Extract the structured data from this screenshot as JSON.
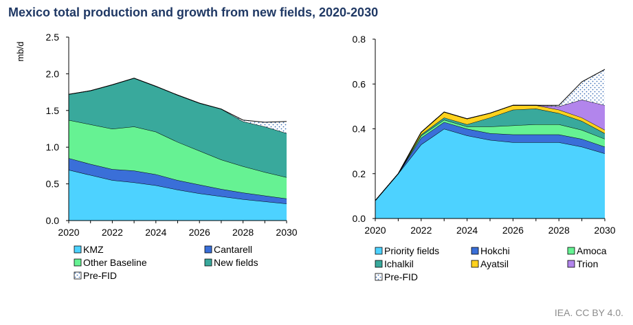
{
  "title": "Mexico total production and growth from new fields, 2020-2030",
  "credit": "IEA. CC BY 4.0.",
  "colors": {
    "kmz": "#4dd2ff",
    "cantarell": "#3a6fd8",
    "other_baseline": "#66f293",
    "new_fields": "#39a99c",
    "pre_fid": "#ffffff",
    "priority_fields": "#4dd2ff",
    "hokchi": "#3a6fd8",
    "amoca": "#66f293",
    "ichalkil": "#39a99c",
    "ayatsil": "#ffd21e",
    "trion": "#b285ec"
  },
  "chart_data": [
    {
      "type": "area",
      "stacked": true,
      "ylabel": "mb/d",
      "xlabel": "",
      "ylim": [
        0,
        2.5
      ],
      "yticks": [
        "0.0",
        "0.5",
        "1.0",
        "1.5",
        "2.0",
        "2.5"
      ],
      "xticks": [
        "2020",
        "2022",
        "2024",
        "2026",
        "2028",
        "2030"
      ],
      "x": [
        2020,
        2021,
        2022,
        2023,
        2024,
        2025,
        2026,
        2027,
        2028,
        2029,
        2030
      ],
      "series": [
        {
          "name": "KMZ",
          "color_key": "kmz",
          "values": [
            0.69,
            0.62,
            0.55,
            0.52,
            0.48,
            0.42,
            0.37,
            0.33,
            0.29,
            0.26,
            0.23
          ]
        },
        {
          "name": "Cantarell",
          "color_key": "cantarell",
          "values": [
            0.16,
            0.15,
            0.15,
            0.16,
            0.15,
            0.13,
            0.12,
            0.1,
            0.09,
            0.08,
            0.07
          ]
        },
        {
          "name": "Other Baseline",
          "color_key": "other_baseline",
          "values": [
            0.52,
            0.54,
            0.55,
            0.6,
            0.58,
            0.52,
            0.46,
            0.4,
            0.36,
            0.32,
            0.29
          ]
        },
        {
          "name": "New fields",
          "color_key": "new_fields",
          "values": [
            0.35,
            0.46,
            0.6,
            0.66,
            0.62,
            0.64,
            0.65,
            0.69,
            0.61,
            0.62,
            0.6
          ]
        },
        {
          "name": "Pre-FID",
          "color_key": "pre_fid",
          "dotted": true,
          "values": [
            0,
            0,
            0,
            0,
            0,
            0,
            0,
            0,
            0.02,
            0.06,
            0.16
          ]
        }
      ],
      "legend": [
        {
          "label": "KMZ",
          "color_key": "kmz"
        },
        {
          "label": "Cantarell",
          "color_key": "cantarell"
        },
        {
          "label": "Other Baseline",
          "color_key": "other_baseline"
        },
        {
          "label": "New fields",
          "color_key": "new_fields"
        },
        {
          "label": "Pre-FID",
          "color_key": "pre_fid",
          "dotted": true
        }
      ]
    },
    {
      "type": "area",
      "stacked": true,
      "ylabel": "",
      "xlabel": "",
      "ylim": [
        0,
        0.8
      ],
      "yticks": [
        "0.0",
        "0.2",
        "0.4",
        "0.6",
        "0.8"
      ],
      "xticks": [
        "2020",
        "2022",
        "2024",
        "2026",
        "2028",
        "2030"
      ],
      "x": [
        2020,
        2021,
        2022,
        2023,
        2024,
        2025,
        2026,
        2027,
        2028,
        2029,
        2030
      ],
      "series": [
        {
          "name": "Priority fields",
          "color_key": "priority_fields",
          "values": [
            0.08,
            0.2,
            0.33,
            0.4,
            0.37,
            0.35,
            0.34,
            0.34,
            0.34,
            0.32,
            0.29
          ]
        },
        {
          "name": "Hokchi",
          "color_key": "hokchi",
          "values": [
            0,
            0,
            0.03,
            0.03,
            0.03,
            0.03,
            0.035,
            0.035,
            0.035,
            0.035,
            0.03
          ]
        },
        {
          "name": "Amoca",
          "color_key": "amoca",
          "values": [
            0,
            0,
            0.01,
            0.01,
            0.01,
            0.03,
            0.04,
            0.045,
            0.045,
            0.04,
            0.035
          ]
        },
        {
          "name": "Ichalkil",
          "color_key": "ichalkil",
          "values": [
            0,
            0,
            0.005,
            0.01,
            0.01,
            0.04,
            0.07,
            0.07,
            0.05,
            0.04,
            0.025
          ]
        },
        {
          "name": "Ayatsil",
          "color_key": "ayatsil",
          "values": [
            0,
            0,
            0.01,
            0.025,
            0.025,
            0.02,
            0.02,
            0.015,
            0.015,
            0.015,
            0.015
          ]
        },
        {
          "name": "Trion",
          "color_key": "trion",
          "values": [
            0,
            0,
            0,
            0,
            0,
            0,
            0,
            0,
            0.015,
            0.08,
            0.11
          ]
        },
        {
          "name": "Pre-FID",
          "color_key": "pre_fid",
          "dotted": true,
          "values": [
            0,
            0,
            0,
            0,
            0,
            0,
            0,
            0,
            0.005,
            0.08,
            0.16
          ]
        }
      ],
      "legend": [
        {
          "label": "Priority fields",
          "color_key": "priority_fields"
        },
        {
          "label": "Hokchi",
          "color_key": "hokchi"
        },
        {
          "label": "Amoca",
          "color_key": "amoca"
        },
        {
          "label": "Ichalkil",
          "color_key": "ichalkil"
        },
        {
          "label": "Ayatsil",
          "color_key": "ayatsil"
        },
        {
          "label": "Trion",
          "color_key": "trion"
        },
        {
          "label": "Pre-FID",
          "color_key": "pre_fid",
          "dotted": true
        }
      ]
    }
  ]
}
